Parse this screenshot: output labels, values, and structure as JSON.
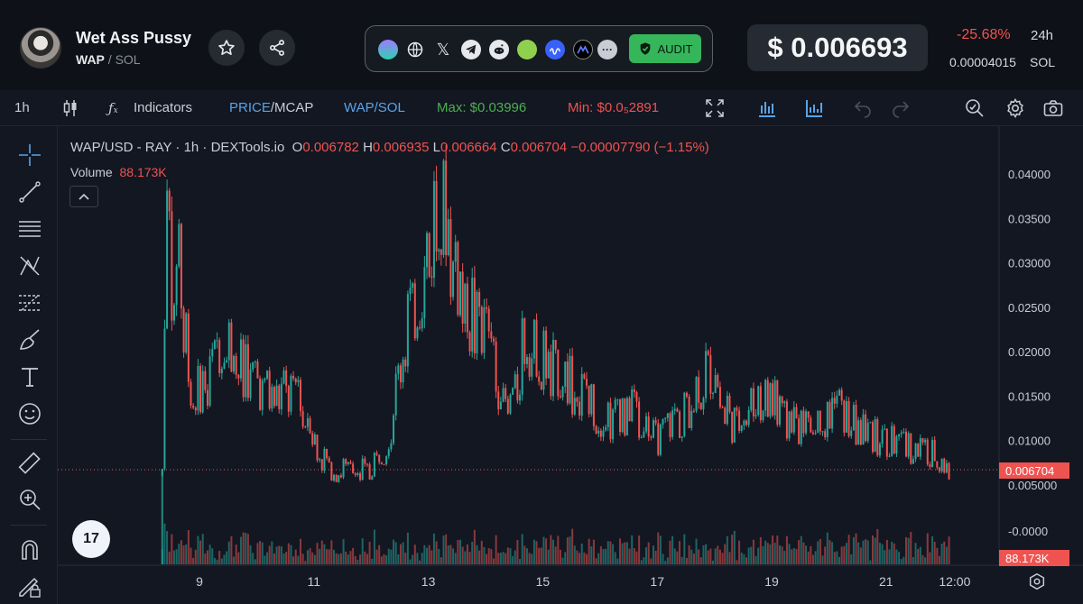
{
  "header": {
    "token_name": "Wet Ass Pussy",
    "token_symbol": "WAP",
    "pair_base": "SOL",
    "audit_label": "AUDIT",
    "price": "$ 0.006693",
    "change": "-25.68%",
    "change_period": "24h",
    "price_sol": "0.00004015",
    "price_sol_unit": "SOL",
    "icons": [
      "star-icon",
      "share-icon",
      "coin-icon",
      "globe-icon",
      "x-icon",
      "telegram-icon",
      "reddit-icon",
      "pepe-icon",
      "coinmarketcap-icon",
      "mexc-icon",
      "more-icon"
    ]
  },
  "toolbar": {
    "interval": "1h",
    "indicators": "Indicators",
    "price_label": "PRICE",
    "mcap_label": "MCAP",
    "pair_label": "WAP/SOL",
    "max_label": "Max: $0.03996",
    "min_label": "Min: $0.0₅2891"
  },
  "colors": {
    "up": "#26a69a",
    "down": "#ef5350",
    "bg": "#131722",
    "max": "#4caf50",
    "link": "#5aa3e6"
  },
  "legend": {
    "title": "WAP/USD - RAY · 1h · DEXTools.io",
    "o_label": "O",
    "o": "0.006782",
    "h_label": "H",
    "h": "0.006935",
    "l_label": "L",
    "l": "0.006664",
    "c_label": "C",
    "c": "0.006704",
    "change": "−0.00007790 (−1.15%)",
    "volume_label": "Volume",
    "volume": "88.173K"
  },
  "tv_logo": "17",
  "chart_data": {
    "type": "candlestick",
    "y_axis_ticks": [
      "0.04000",
      "0.03500",
      "0.03000",
      "0.02500",
      "0.02000",
      "0.01500",
      "0.01000",
      "0.005000",
      "-0.0000"
    ],
    "x_axis_ticks": [
      "9",
      "11",
      "13",
      "15",
      "17",
      "19",
      "21",
      "12:00"
    ],
    "ylim": [
      0.0,
      0.04
    ],
    "last_price": "0.006704",
    "last_volume": "88.173K",
    "approx_close_path": [
      [
        8.35,
        0.006
      ],
      [
        8.4,
        0.03
      ],
      [
        8.45,
        0.037
      ],
      [
        8.55,
        0.02
      ],
      [
        8.6,
        0.035
      ],
      [
        8.8,
        0.018
      ],
      [
        9.0,
        0.015
      ],
      [
        9.3,
        0.02
      ],
      [
        9.6,
        0.021
      ],
      [
        9.9,
        0.016
      ],
      [
        10.2,
        0.015
      ],
      [
        10.5,
        0.015
      ],
      [
        10.9,
        0.014
      ],
      [
        11.0,
        0.0095
      ],
      [
        11.3,
        0.0065
      ],
      [
        11.7,
        0.0068
      ],
      [
        12.0,
        0.0065
      ],
      [
        12.3,
        0.01
      ],
      [
        12.6,
        0.022
      ],
      [
        12.9,
        0.026
      ],
      [
        13.2,
        0.04
      ],
      [
        13.4,
        0.028
      ],
      [
        13.7,
        0.025
      ],
      [
        14.1,
        0.02
      ],
      [
        14.4,
        0.012
      ],
      [
        14.7,
        0.022
      ],
      [
        15.0,
        0.019
      ],
      [
        15.4,
        0.017
      ],
      [
        15.8,
        0.014
      ],
      [
        16.2,
        0.012
      ],
      [
        16.6,
        0.0135
      ],
      [
        17.0,
        0.01
      ],
      [
        17.4,
        0.0125
      ],
      [
        17.8,
        0.016
      ],
      [
        18.0,
        0.019
      ],
      [
        18.3,
        0.011
      ],
      [
        18.6,
        0.0145
      ],
      [
        19.0,
        0.0145
      ],
      [
        19.4,
        0.0115
      ],
      [
        19.8,
        0.012
      ],
      [
        20.2,
        0.0135
      ],
      [
        20.6,
        0.011
      ],
      [
        21.0,
        0.01
      ],
      [
        21.4,
        0.009
      ],
      [
        21.8,
        0.0085
      ],
      [
        22.1,
        0.0067
      ]
    ]
  }
}
